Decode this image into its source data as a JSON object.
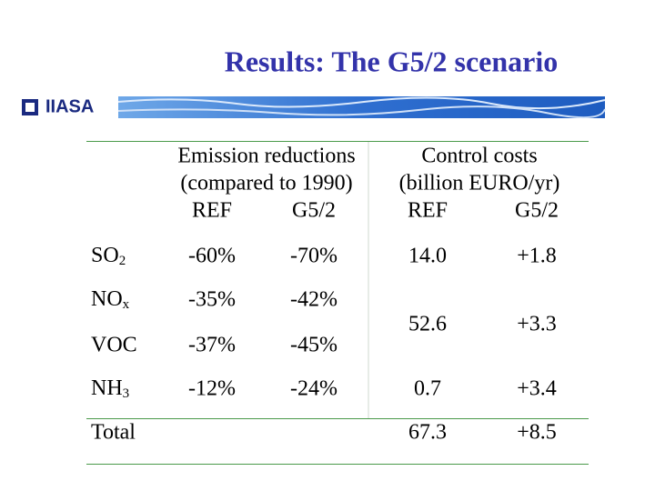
{
  "header": {
    "title": "Results: The G5/2 scenario",
    "logo": "IIASA"
  },
  "table": {
    "group_headers": [
      [
        "Emission reductions",
        "(compared to 1990)"
      ],
      [
        "Control costs",
        "(billion EURO/yr)"
      ]
    ],
    "sub_headers": [
      "REF",
      "G5/2",
      "REF",
      "G5/2"
    ],
    "rows": [
      {
        "pollutant": {
          "base": "SO",
          "sub": "2"
        },
        "reductions": [
          "-60%",
          "-70%"
        ],
        "costs": [
          "14.0",
          "+1.8"
        ]
      },
      {
        "pollutant": {
          "base": "NO",
          "sub": "x"
        },
        "reductions": [
          "-35%",
          "-42%"
        ],
        "costs": [
          "52.6",
          "+3.3"
        ]
      },
      {
        "pollutant": {
          "base": "VOC"
        },
        "reductions": [
          "-37%",
          "-45%"
        ]
      },
      {
        "pollutant": {
          "base": "NH",
          "sub": "3"
        },
        "reductions": [
          "-12%",
          "-24%"
        ],
        "costs": [
          "0.7",
          "+3.4"
        ]
      },
      {
        "pollutant": {
          "base": "Total"
        },
        "costs": [
          "67.3",
          "+8.5"
        ]
      }
    ]
  }
}
